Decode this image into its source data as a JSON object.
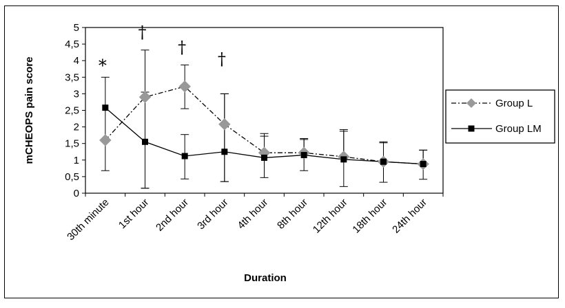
{
  "chart_data": {
    "type": "line",
    "title": "",
    "xlabel": "Duration",
    "ylabel": "mCHEOPS pain score",
    "ylim": [
      0,
      5
    ],
    "yticks": [
      "0",
      "0,5",
      "1",
      "1,5",
      "2",
      "2,5",
      "3",
      "3,5",
      "4",
      "4,5",
      "5"
    ],
    "grid": false,
    "legend_position": "right",
    "categories": [
      "30th minute",
      "1st hour",
      "2nd hour",
      "3rd hour",
      "4th hour",
      "8th hour",
      "12th hour",
      "18th hour",
      "24th hour"
    ],
    "series": [
      {
        "name": "Group L",
        "color": "#999999",
        "marker": "diamond",
        "line_style": "dash-dot",
        "values": [
          1.6,
          2.9,
          3.22,
          2.08,
          1.22,
          1.22,
          1.1,
          0.95,
          0.88
        ],
        "error_low": [
          null,
          0.15,
          2.55,
          0.35,
          null,
          null,
          null,
          null,
          null
        ],
        "error_high": [
          null,
          4.32,
          3.87,
          3.0,
          1.8,
          1.65,
          1.92,
          1.55,
          1.3
        ]
      },
      {
        "name": "Group LM",
        "color": "#000000",
        "marker": "square",
        "line_style": "solid",
        "values": [
          2.58,
          1.55,
          1.12,
          1.25,
          1.07,
          1.15,
          1.02,
          0.95,
          0.88
        ],
        "error_low": [
          0.68,
          0.15,
          0.43,
          0.35,
          0.47,
          0.68,
          0.2,
          0.33,
          0.42
        ],
        "error_high": [
          3.5,
          3.05,
          1.77,
          3.0,
          1.72,
          1.62,
          1.87,
          1.52,
          1.3
        ]
      }
    ],
    "annotations": [
      {
        "text": "*",
        "category": "30th minute",
        "y": 3.85
      },
      {
        "text": "†",
        "category": "1st hour",
        "y": 4.85
      },
      {
        "text": "†",
        "category": "2nd hour",
        "y": 4.4
      },
      {
        "text": "†",
        "category": "3rd hour",
        "y": 4.05
      }
    ]
  }
}
